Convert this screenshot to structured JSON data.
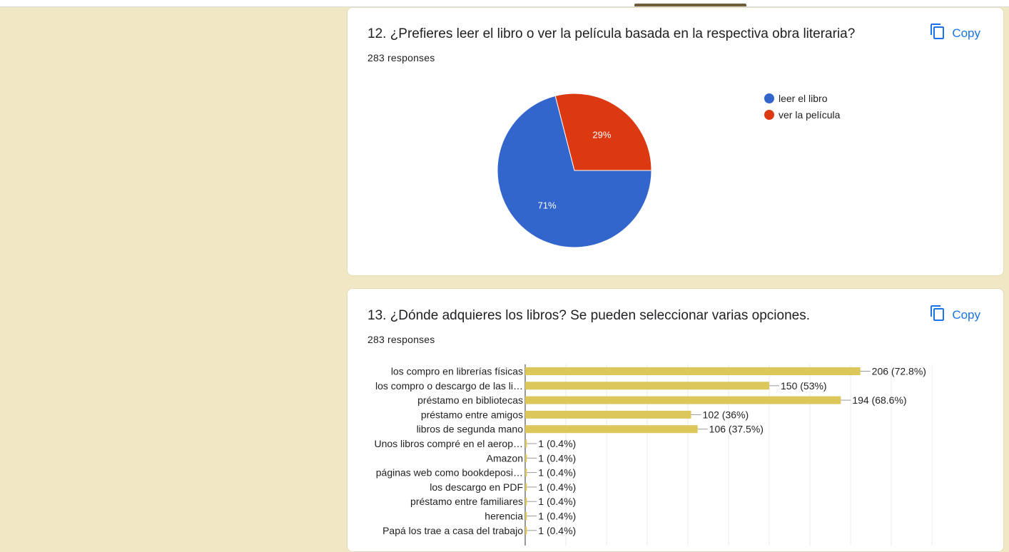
{
  "colors": {
    "page_bg": "#f0e8c4",
    "accent": "#1a73e8",
    "pie_blue": "#3366cc",
    "pie_red": "#dc3912",
    "bar": "#dcc75a"
  },
  "icons": {
    "copy": "copy-icon"
  },
  "q12": {
    "title": "12. ¿Prefieres leer el libro o ver la película basada en la respectiva obra literaria?",
    "responses": "283 responses",
    "copy_label": "Copy"
  },
  "q13": {
    "title": "13. ¿Dónde adquieres los libros? Se pueden seleccionar varias opciones.",
    "responses": "283 responses",
    "copy_label": "Copy"
  },
  "chart_data": [
    {
      "type": "pie",
      "categories": [
        "leer el libro",
        "ver la película"
      ],
      "values": [
        71,
        29
      ],
      "labels": [
        "71%",
        "29%"
      ],
      "colors": [
        "#3366cc",
        "#dc3912"
      ],
      "legend": "right"
    },
    {
      "type": "bar",
      "orientation": "horizontal",
      "categories": [
        "los compro en librerías físicas",
        "los compro o descargo de las li…",
        "préstamo en bibliotecas",
        "préstamo entre amigos",
        "libros de segunda mano",
        "Unos libros compré en el aerop…",
        "Amazon",
        "páginas web como bookdeposi…",
        "los descargo en PDF",
        "préstamo entre familiares",
        "herencia",
        "Papá los trae a casa del trabajo"
      ],
      "values": [
        206,
        150,
        194,
        102,
        106,
        1,
        1,
        1,
        1,
        1,
        1,
        1
      ],
      "data_labels": [
        "206 (72.8%)",
        "150 (53%)",
        "194 (68.6%)",
        "102 (36%)",
        "106 (37.5%)",
        "1 (0.4%)",
        "1 (0.4%)",
        "1 (0.4%)",
        "1 (0.4%)",
        "1 (0.4%)",
        "1 (0.4%)",
        "1 (0.4%)"
      ],
      "xlim": [
        0,
        250
      ],
      "grid": true,
      "color": "#dcc75a"
    }
  ]
}
